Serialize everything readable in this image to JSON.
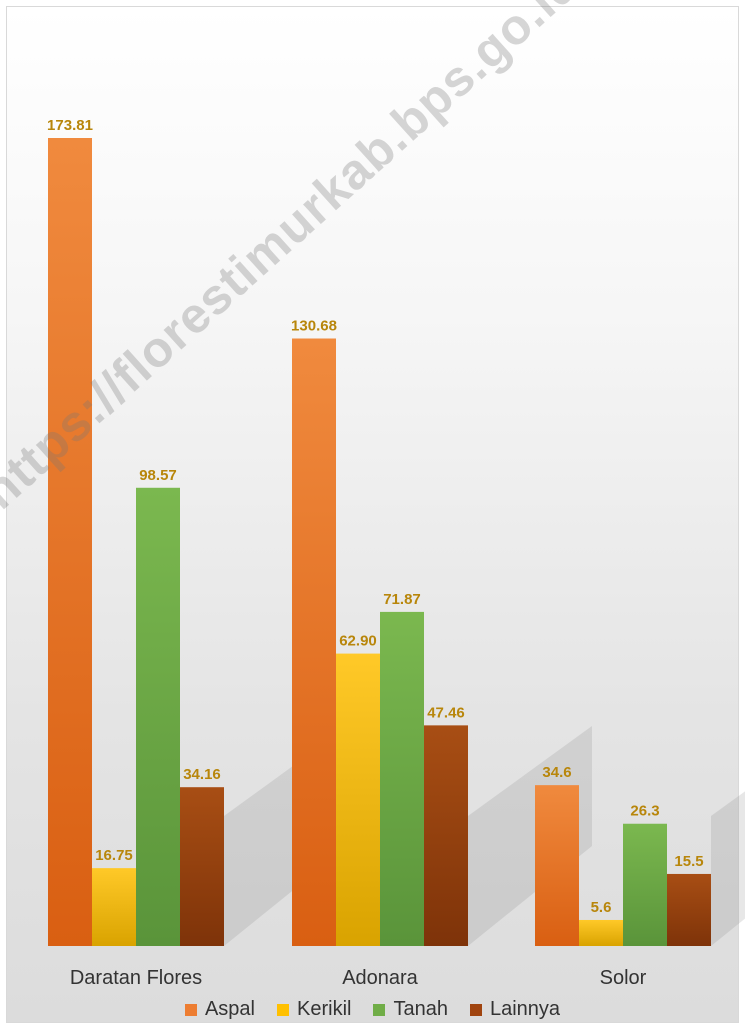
{
  "chart_data": {
    "type": "bar",
    "categories": [
      "Daratan Flores",
      "Adonara",
      "Solor"
    ],
    "series": [
      {
        "name": "Aspal",
        "values": [
          173.81,
          130.68,
          34.6
        ],
        "labels": [
          "173.81",
          "130.68",
          "34.6"
        ],
        "color": "#ED7D31"
      },
      {
        "name": "Kerikil",
        "values": [
          16.75,
          62.9,
          5.6
        ],
        "labels": [
          "16.75",
          "62.90",
          "5.6"
        ],
        "color": "#FFC000"
      },
      {
        "name": "Tanah",
        "values": [
          98.57,
          71.87,
          26.3
        ],
        "labels": [
          "98.57",
          "71.87",
          "26.3"
        ],
        "color": "#70AD47"
      },
      {
        "name": "Lainnya",
        "values": [
          34.16,
          47.46,
          15.5
        ],
        "labels": [
          "34.16",
          "47.46",
          "15.5"
        ],
        "color": "#A0440F"
      }
    ],
    "title": "",
    "xlabel": "",
    "ylabel": "",
    "ylim": [
      0,
      173.81
    ],
    "grid": false,
    "legend": "bottom",
    "label_color": "#B8860B"
  },
  "watermark": "https://florestimurkab.bps.go.id"
}
